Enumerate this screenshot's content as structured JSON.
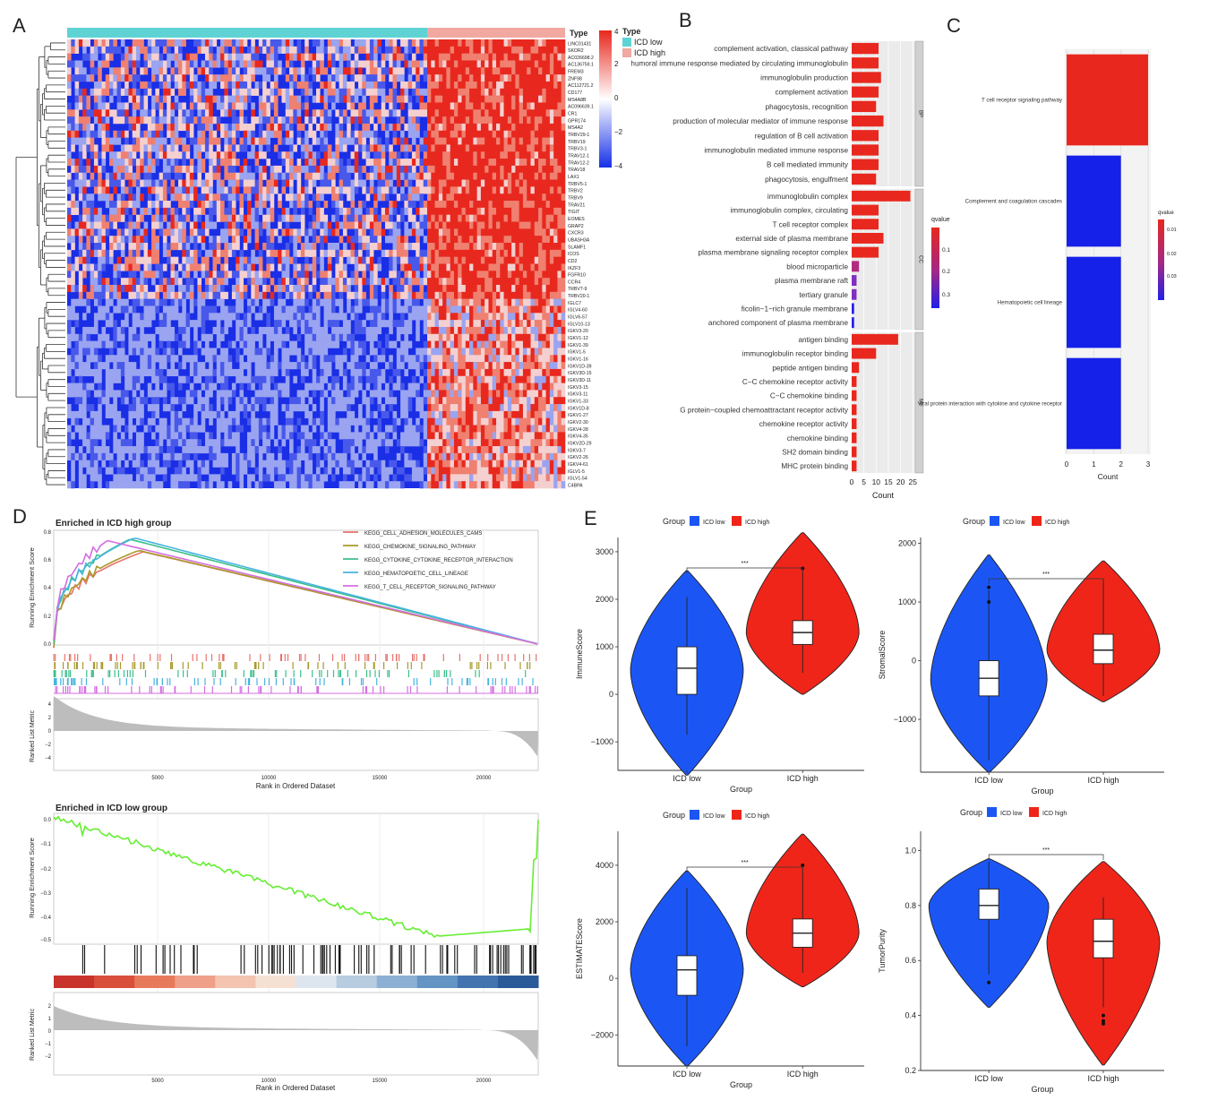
{
  "panel_letters": {
    "a": "A",
    "b": "B",
    "c": "C",
    "d": "D",
    "e": "E"
  },
  "heatmap": {
    "legend_title": "Type",
    "groups": [
      "ICD low",
      "ICD high"
    ],
    "group_colors": [
      "#5fd3d3",
      "#f0a8a0"
    ],
    "scale_ticks": [
      "4",
      "2",
      "0",
      "−2",
      "−4"
    ],
    "genes": [
      "LINC01431",
      "SKOR2",
      "AC026698.2",
      "AC136759.1",
      "FREM3",
      "ZNF98",
      "AC112721.2",
      "CD177",
      "MS4A8B",
      "AC096639.1",
      "CR1",
      "GPR174",
      "MS4A2",
      "TRBV29-1",
      "TRBV19",
      "TRBV3-1",
      "TRAV12-1",
      "TRAV12-2",
      "TRAV18",
      "LAX1",
      "TRBV5-1",
      "TRBV2",
      "TRBV9",
      "TRAV21",
      "TIGIT",
      "EOMES",
      "GRAP2",
      "CXCR3",
      "UBASH3A",
      "SLAMF1",
      "ICOS",
      "CD2",
      "IKZF3",
      "FGFR10",
      "CCR4",
      "TRBV7-9",
      "TRBV20-1",
      "IGLC7",
      "IGLV4-60",
      "IGLV6-57",
      "IGLV10-13",
      "IGKV3-20",
      "IGKV1-12",
      "IGKV1-39",
      "IGKV1-5",
      "IGKV1-16",
      "IGKV1D-39",
      "IGKV3D-15",
      "IGKV3D-11",
      "IGKV3-15",
      "IGKV3-11",
      "IGKV1-33",
      "IGKV1D-8",
      "IGKV1-27",
      "IGKV2-30",
      "IGKV4-28",
      "IGKV4-35",
      "IGKV2D-29",
      "IGKV3-7",
      "IGKV2-26",
      "IGKV4-61",
      "IGLV1-5",
      "IGLV1-54",
      "C4BPA"
    ]
  },
  "go": {
    "xlabel": "Count",
    "x_ticks": [
      0,
      5,
      10,
      15,
      20,
      25
    ],
    "legend_title": "qvalue",
    "legend_ticks": [
      "0.1",
      "0.2",
      "0.3"
    ],
    "facets": [
      {
        "name": "BP",
        "terms": [
          {
            "label": "complement activation, classical pathway",
            "count": 11,
            "q": 0.02
          },
          {
            "label": "humoral immune response mediated by circulating immunoglobulin",
            "count": 11,
            "q": 0.02
          },
          {
            "label": "immunoglobulin production",
            "count": 12,
            "q": 0.02
          },
          {
            "label": "complement activation",
            "count": 11,
            "q": 0.02
          },
          {
            "label": "phagocytosis, recognition",
            "count": 10,
            "q": 0.02
          },
          {
            "label": "production of molecular mediator of immune response",
            "count": 13,
            "q": 0.02
          },
          {
            "label": "regulation of B cell activation",
            "count": 11,
            "q": 0.02
          },
          {
            "label": "immunoglobulin mediated immune response",
            "count": 11,
            "q": 0.02
          },
          {
            "label": "B cell mediated immunity",
            "count": 11,
            "q": 0.02
          },
          {
            "label": "phagocytosis, engulfment",
            "count": 10,
            "q": 0.02
          }
        ]
      },
      {
        "name": "CC",
        "terms": [
          {
            "label": "immunoglobulin complex",
            "count": 24,
            "q": 0.01
          },
          {
            "label": "immunoglobulin complex, circulating",
            "count": 11,
            "q": 0.02
          },
          {
            "label": "T cell receptor complex",
            "count": 11,
            "q": 0.02
          },
          {
            "label": "external side of plasma membrane",
            "count": 13,
            "q": 0.02
          },
          {
            "label": "plasma membrane signaling receptor complex",
            "count": 11,
            "q": 0.02
          },
          {
            "label": "blood microparticle",
            "count": 3,
            "q": 0.08
          },
          {
            "label": "plasma membrane raft",
            "count": 2,
            "q": 0.22
          },
          {
            "label": "tertiary granule",
            "count": 2,
            "q": 0.24
          },
          {
            "label": "ficolin−1−rich granule membrane",
            "count": 1,
            "q": 0.33
          },
          {
            "label": "anchored component of plasma membrane",
            "count": 1,
            "q": 0.35
          }
        ]
      },
      {
        "name": "MF",
        "terms": [
          {
            "label": "antigen binding",
            "count": 19,
            "q": 0.01
          },
          {
            "label": "immunoglobulin receptor binding",
            "count": 10,
            "q": 0.02
          },
          {
            "label": "peptide antigen binding",
            "count": 3,
            "q": 0.03
          },
          {
            "label": "C−C chemokine receptor activity",
            "count": 2,
            "q": 0.04
          },
          {
            "label": "C−C chemokine binding",
            "count": 2,
            "q": 0.04
          },
          {
            "label": "G protein−coupled chemoattractant receptor activity",
            "count": 2,
            "q": 0.04
          },
          {
            "label": "chemokine receptor activity",
            "count": 2,
            "q": 0.04
          },
          {
            "label": "chemokine binding",
            "count": 2,
            "q": 0.04
          },
          {
            "label": "SH2 domain binding",
            "count": 2,
            "q": 0.04
          },
          {
            "label": "MHC protein binding",
            "count": 2,
            "q": 0.04
          }
        ]
      }
    ]
  },
  "kegg": {
    "xlabel": "Count",
    "x_ticks": [
      0,
      1,
      2,
      3
    ],
    "legend_title": "qvalue",
    "legend_ticks": [
      "0.01",
      "0.02",
      "0.03"
    ],
    "terms": [
      {
        "label": "T cell receptor signaling pathway",
        "count": 3,
        "q": 0.005
      },
      {
        "label": "Complement and coagulation cascades",
        "count": 2,
        "q": 0.035
      },
      {
        "label": "Hematopoietic cell lineage",
        "count": 2,
        "q": 0.035
      },
      {
        "label": "Viral protein interaction with cytokine and cytokine receptor",
        "count": 2,
        "q": 0.035
      }
    ]
  },
  "gsea_high": {
    "title": "Enriched in ICD high group",
    "ylabel": "Running Enrichment Score",
    "metric_label": "Ranked List Metric",
    "xlabel": "Rank in Ordered Dataset",
    "x_ticks": [
      "5000",
      "10000",
      "15000",
      "20000"
    ],
    "y_ticks": [
      "0.8",
      "0.6",
      "0.4",
      "0.2",
      "0.0"
    ],
    "metric_ticks": [
      "4",
      "2",
      "0",
      "−2",
      "−4"
    ],
    "series": [
      {
        "name": "KEGG_CELL_ADHESION_MOLECULES_CAMS",
        "color": "#e8736e"
      },
      {
        "name": "KEGG_CHEMOKINE_SIGNALING_PATHWAY",
        "color": "#a89a2a"
      },
      {
        "name": "KEGG_CYTOKINE_CYTOKINE_RECEPTOR_INTERACTION",
        "color": "#3cbf8a"
      },
      {
        "name": "KEGG_HEMATOPOETIC_CELL_LINEAGE",
        "color": "#46b4e0"
      },
      {
        "name": "KEGG_T_CELL_RECEPTOR_SIGNALING_PATHWAY",
        "color": "#d46ee0"
      }
    ]
  },
  "gsea_low": {
    "title": "Enriched in ICD low group",
    "ylabel": "Running Enrichment Score",
    "metric_label": "Ranked List Metric",
    "xlabel": "Rank in Ordered Dataset",
    "x_ticks": [
      "5000",
      "10000",
      "15000",
      "20000"
    ],
    "y_ticks": [
      "0.0",
      "−0.1",
      "−0.2",
      "−0.3",
      "−0.4",
      "−0.5"
    ],
    "metric_ticks": [
      "2",
      "1",
      "0",
      "−1",
      "−2"
    ],
    "line_color": "#66ee33"
  },
  "violins": [
    {
      "ylabel": "ImmuneScore",
      "y_ticks": [
        "3000",
        "2000",
        "1000",
        "0",
        "−1000"
      ],
      "sig": "***",
      "group_label": "Group",
      "legend": [
        "ICD low",
        "ICD high"
      ],
      "xlabel": "Group",
      "categories": [
        "ICD low",
        "ICD high"
      ],
      "colors": [
        "#1b56f5",
        "#f0251a"
      ],
      "medians": [
        550,
        1300
      ]
    },
    {
      "ylabel": "StromalScore",
      "y_ticks": [
        "2000",
        "1000",
        "0",
        "−1000"
      ],
      "sig": "***",
      "group_label": "Group",
      "legend": [
        "ICD low",
        "ICD high"
      ],
      "xlabel": "Group",
      "categories": [
        "ICD low",
        "ICD high"
      ],
      "colors": [
        "#1b56f5",
        "#f0251a"
      ],
      "medians": [
        -300,
        180
      ]
    },
    {
      "ylabel": "ESTIMATEScore",
      "y_ticks": [
        "4000",
        "2000",
        "0",
        "−2000"
      ],
      "sig": "***",
      "group_label": "Group",
      "legend": [
        "ICD low",
        "ICD high"
      ],
      "xlabel": "Group",
      "categories": [
        "ICD low",
        "ICD high"
      ],
      "colors": [
        "#1b56f5",
        "#f0251a"
      ],
      "medians": [
        300,
        1600
      ]
    },
    {
      "ylabel": "TumorPurity",
      "y_ticks": [
        "1.0",
        "0.8",
        "0.6",
        "0.4",
        "0.2"
      ],
      "sig": "***",
      "group_label": "Group",
      "legend": [
        "ICD low",
        "ICD high"
      ],
      "xlabel": "Group",
      "categories": [
        "ICD low",
        "ICD high"
      ],
      "colors": [
        "#1b56f5",
        "#f0251a"
      ],
      "medians": [
        0.8,
        0.67
      ]
    }
  ]
}
